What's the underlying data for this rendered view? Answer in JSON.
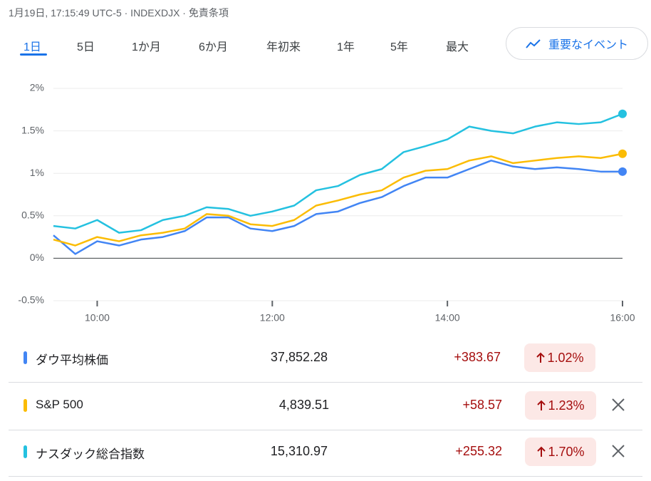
{
  "header": {
    "meta": "1月19日, 17:15:49 UTC-5 · INDEXDJX · 免責条項"
  },
  "tabs": [
    "1日",
    "5日",
    "1か月",
    "6か月",
    "年初来",
    "1年",
    "5年",
    "最大"
  ],
  "events_button": "重要なイベント",
  "chart_data": {
    "type": "line",
    "x": [
      "09:30",
      "09:45",
      "10:00",
      "10:15",
      "10:30",
      "10:45",
      "11:00",
      "11:15",
      "11:30",
      "11:45",
      "12:00",
      "12:15",
      "12:30",
      "12:45",
      "13:00",
      "13:15",
      "13:30",
      "13:45",
      "14:00",
      "14:15",
      "14:30",
      "14:45",
      "15:00",
      "15:15",
      "15:30",
      "15:45",
      "16:00"
    ],
    "series": [
      {
        "name": "ダウ平均株価",
        "color": "#4285f4",
        "values": [
          0.27,
          0.05,
          0.2,
          0.15,
          0.22,
          0.25,
          0.32,
          0.48,
          0.48,
          0.35,
          0.32,
          0.38,
          0.52,
          0.55,
          0.65,
          0.72,
          0.85,
          0.95,
          0.95,
          1.05,
          1.15,
          1.08,
          1.05,
          1.07,
          1.05,
          1.02,
          1.02
        ]
      },
      {
        "name": "S&P 500",
        "color": "#fbbc04",
        "values": [
          0.22,
          0.15,
          0.25,
          0.2,
          0.27,
          0.3,
          0.35,
          0.52,
          0.5,
          0.4,
          0.38,
          0.45,
          0.62,
          0.68,
          0.75,
          0.8,
          0.95,
          1.03,
          1.05,
          1.15,
          1.2,
          1.12,
          1.15,
          1.18,
          1.2,
          1.18,
          1.23
        ]
      },
      {
        "name": "ナスダック総合指数",
        "color": "#24c1e0",
        "values": [
          0.38,
          0.35,
          0.45,
          0.3,
          0.33,
          0.45,
          0.5,
          0.6,
          0.58,
          0.5,
          0.55,
          0.62,
          0.8,
          0.85,
          0.98,
          1.05,
          1.25,
          1.32,
          1.4,
          1.55,
          1.5,
          1.47,
          1.55,
          1.6,
          1.58,
          1.6,
          1.7
        ]
      }
    ],
    "xlim": [
      "09:30",
      "16:00"
    ],
    "xticks": [
      "10:00",
      "12:00",
      "14:00",
      "16:00"
    ],
    "ylim": [
      -0.5,
      2
    ],
    "yticks": [
      {
        "value": -0.5,
        "label": "-0.5%"
      },
      {
        "value": 0,
        "label": "0%"
      },
      {
        "value": 0.5,
        "label": "0.5%"
      },
      {
        "value": 1,
        "label": "1%"
      },
      {
        "value": 1.5,
        "label": "1.5%"
      },
      {
        "value": 2,
        "label": "2%"
      }
    ],
    "grid": true
  },
  "table": {
    "rows": [
      [
        "ダウ平均株価",
        "37,852.28",
        "+383.67",
        "1.02%"
      ],
      [
        "S&P 500",
        "4,839.51",
        "+58.57",
        "1.23%"
      ],
      [
        "ナスダック総合指数",
        "15,310.97",
        "+255.32",
        "1.70%"
      ]
    ]
  }
}
